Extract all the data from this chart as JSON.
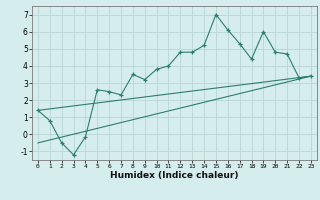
{
  "title": "",
  "xlabel": "Humidex (Indice chaleur)",
  "background_color": "#d6eded",
  "grid_color": "#b8d4d4",
  "line_color": "#2d7d6e",
  "marker_color": "#2d7d6e",
  "xlim": [
    -0.5,
    23.5
  ],
  "ylim": [
    -1.5,
    7.5
  ],
  "xticks": [
    0,
    1,
    2,
    3,
    4,
    5,
    6,
    7,
    8,
    9,
    10,
    11,
    12,
    13,
    14,
    15,
    16,
    17,
    18,
    19,
    20,
    21,
    22,
    23
  ],
  "yticks": [
    -1,
    0,
    1,
    2,
    3,
    4,
    5,
    6,
    7
  ],
  "main_x": [
    0,
    1,
    2,
    3,
    4,
    5,
    6,
    7,
    8,
    9,
    10,
    11,
    12,
    13,
    14,
    15,
    16,
    17,
    18,
    19,
    20,
    21,
    22,
    23
  ],
  "main_y": [
    1.4,
    0.8,
    -0.5,
    -1.2,
    -0.15,
    2.6,
    2.5,
    2.3,
    3.5,
    3.2,
    3.8,
    4.0,
    4.8,
    4.8,
    5.2,
    7.0,
    6.1,
    5.3,
    4.4,
    6.0,
    4.8,
    4.7,
    3.3,
    3.4
  ],
  "line1_x": [
    0,
    23
  ],
  "line1_y": [
    1.4,
    3.4
  ],
  "line2_x": [
    0,
    23
  ],
  "line2_y": [
    -0.5,
    3.4
  ],
  "line3_x": [
    0,
    23
  ],
  "line3_y": [
    1.4,
    3.4
  ]
}
